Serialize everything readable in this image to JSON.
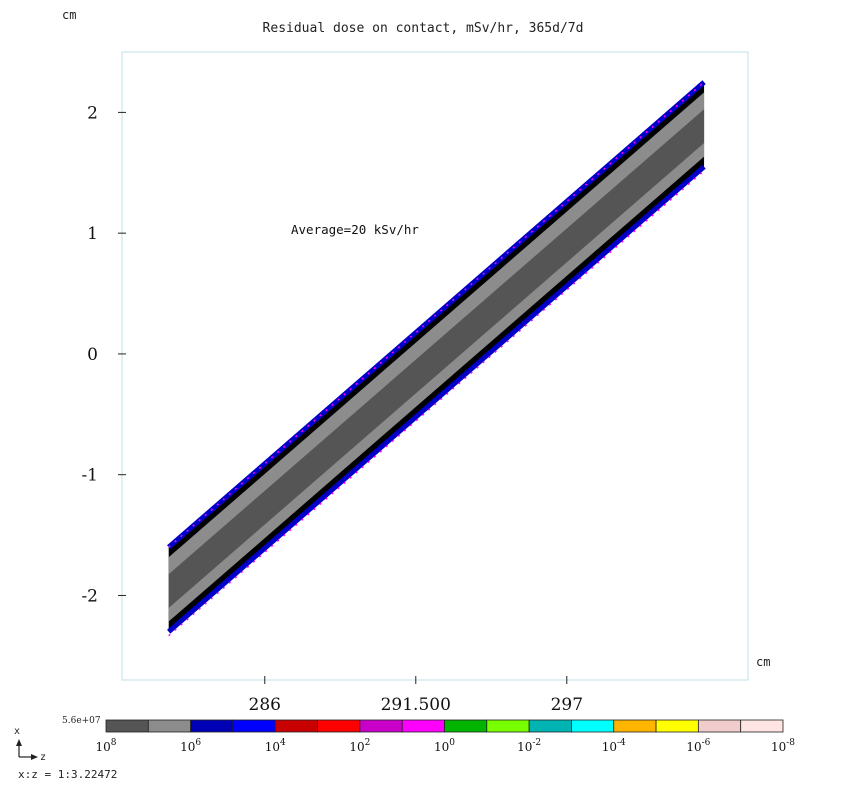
{
  "window": {
    "unit_top": "cm",
    "unit_right": "cm",
    "average_label": "Average=20 kSv/hr",
    "axis_x_letter": "x",
    "axis_z_letter": "z",
    "aspect_ratio": "x:z = 1:3.22472"
  },
  "chart_data": {
    "type": "heatmap",
    "title": "Residual dose on contact, mSv/hr, 365d/7d",
    "xlabel": "cm",
    "ylabel": "cm",
    "xlim": [
      280.8,
      303.6
    ],
    "ylim": [
      -2.7,
      2.5
    ],
    "xticks": [
      {
        "value": 286,
        "label": "286"
      },
      {
        "value": 291.5,
        "label": "291.500"
      },
      {
        "value": 297,
        "label": "297"
      }
    ],
    "yticks": [
      {
        "value": 2,
        "label": "2"
      },
      {
        "value": 1,
        "label": "1"
      },
      {
        "value": 0,
        "label": "0"
      },
      {
        "value": -1,
        "label": "-1"
      },
      {
        "value": -2,
        "label": "-2"
      }
    ],
    "region": {
      "description_shape": "slanted bar",
      "left_z": 282.5,
      "right_z": 302.0,
      "left_x_top": -1.6,
      "left_x_bottom": -2.3,
      "right_x_top": 2.25,
      "right_x_bottom": 1.55,
      "fill_colors": [
        "#555555",
        "#8c8c8c"
      ],
      "edge_colors": [
        "#0000c8",
        "#000000",
        "#ff00ff"
      ]
    },
    "colorbar": {
      "max_label": "5.6e+07",
      "colors": [
        "#555555",
        "#8c8c8c",
        "#0000b4",
        "#0000ff",
        "#c80000",
        "#ff0000",
        "#c800c8",
        "#ff00ff",
        "#00b400",
        "#78ff00",
        "#00b4b4",
        "#00ffff",
        "#ffb400",
        "#ffff00",
        "#f0cccc",
        "#ffe4e4"
      ],
      "tick_labels": [
        {
          "base": "10",
          "exp": "8"
        },
        {
          "base": "10",
          "exp": "6"
        },
        {
          "base": "10",
          "exp": "4"
        },
        {
          "base": "10",
          "exp": "2"
        },
        {
          "base": "10",
          "exp": "0"
        },
        {
          "base": "10",
          "exp": "-2"
        },
        {
          "base": "10",
          "exp": "-4"
        },
        {
          "base": "10",
          "exp": "-6"
        },
        {
          "base": "10",
          "exp": "-8"
        }
      ]
    }
  }
}
